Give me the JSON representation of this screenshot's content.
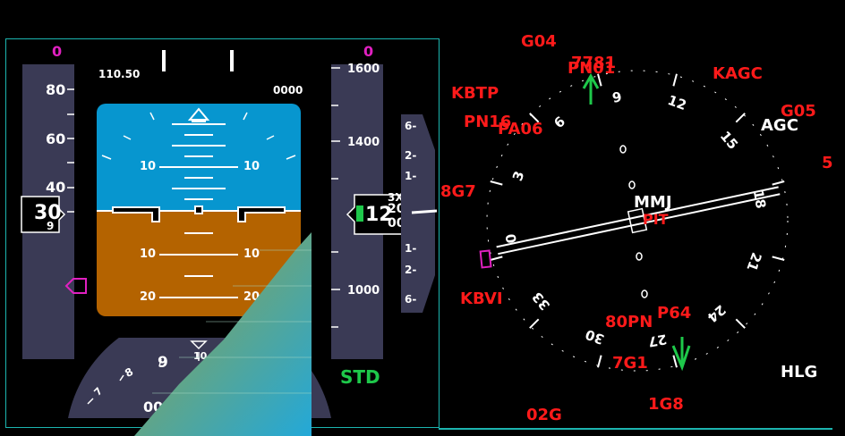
{
  "pfd": {
    "speed_top": "0",
    "alt_top": "0",
    "frequency": "110.50",
    "heading_readout": "0000",
    "speed_ticks": [
      "80",
      "60",
      "40"
    ],
    "speed_box": "30",
    "speed_box_sub": "9",
    "alt_ticks": [
      "1600",
      "1400",
      "1000"
    ],
    "alt_box": "12",
    "alt_box_roll": "20",
    "alt_box_roll_prev": "3X",
    "alt_box_roll_next": "00",
    "vs_ticks_top": [
      "6-",
      "2-",
      "1-"
    ],
    "vs_ticks_bottom": [
      "1-",
      "2-",
      "6-"
    ],
    "baro_mode": "STD",
    "pitch_labels": [
      "10",
      "10",
      "10",
      "10",
      "20",
      "20"
    ],
    "heading_partial": "000",
    "compass_labels": [
      "10",
      "9",
      "8",
      "7"
    ]
  },
  "nd": {
    "waypoints_red": [
      "G04",
      "7781",
      "PN01",
      "KAGC",
      "KBTP",
      "G05",
      "PN16",
      "PA06",
      "5",
      "8G7",
      "KBVI",
      "P64",
      "80PN",
      "7G1",
      "1G8",
      "02G",
      "PIT"
    ],
    "waypoints_white": [
      "AGC",
      "MMJ",
      "HLG"
    ],
    "rose_labels": [
      "6",
      "9",
      "12",
      "15",
      "18",
      "21",
      "24",
      "27",
      "30",
      "33",
      "0",
      "3"
    ],
    "colors": {
      "waypoint_red": "#ff1a1a",
      "waypoint_white": "#ffffff",
      "nav_green": "#1ec84a",
      "magenta": "#e020c0",
      "frame_cyan": "#1cb5b0"
    }
  }
}
